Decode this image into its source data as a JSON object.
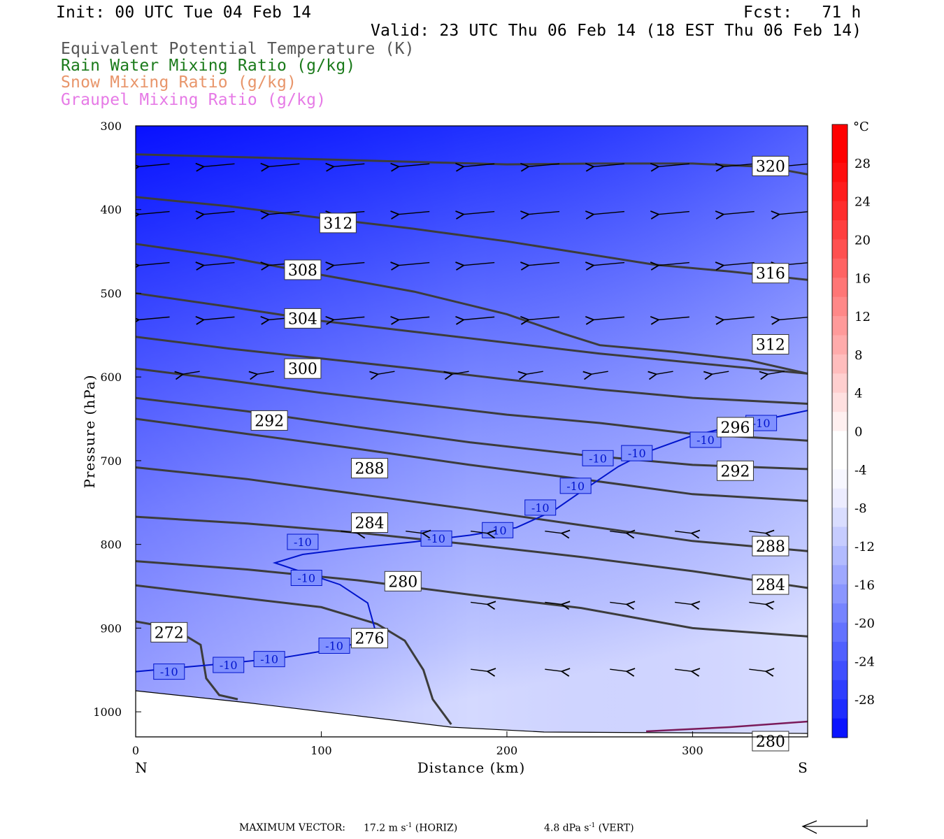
{
  "header": {
    "init": "Init: 00 UTC Tue 04 Feb 14",
    "fcst": "Fcst:   71 h",
    "valid": "Valid: 23 UTC Thu 06 Feb 14 (18 EST Thu 06 Feb 14)"
  },
  "fields": [
    {
      "label": "Equivalent Potential Temperature (K)",
      "color": "#555555"
    },
    {
      "label": "Rain Water Mixing Ratio (g/kg)",
      "color": "#1a7a1a"
    },
    {
      "label": "Snow Mixing Ratio (g/kg)",
      "color": "#e8956a"
    },
    {
      "label": "Graupel Mixing Ratio (g/kg)",
      "color": "#e67ae6"
    }
  ],
  "footer": {
    "max_vector_label": "MAXIMUM VECTOR:",
    "horiz": "17.2 m s-1 (HORIZ)",
    "vert": "4.8 dPa s-1 (VERT)"
  },
  "chart_data": {
    "type": "cross-section",
    "xlabel": "Distance (km)",
    "ylabel": "Pressure (hPa)",
    "xlim": [
      0,
      362
    ],
    "ylim": [
      300,
      1030
    ],
    "x_ticks": [
      0,
      100,
      200,
      300
    ],
    "y_ticks": [
      300,
      400,
      500,
      600,
      700,
      800,
      900,
      1000
    ],
    "left_endpoint": "N",
    "right_endpoint": "S",
    "colorbar": {
      "unit": "°C",
      "tick_labels": [
        28,
        24,
        20,
        16,
        12,
        8,
        4,
        0,
        -4,
        -8,
        -12,
        -16,
        -20,
        -24,
        -28
      ],
      "range": [
        -32,
        32
      ],
      "colors_cold": [
        "#0a14ff",
        "#1e2dff",
        "#2e3eff",
        "#3f4fff",
        "#5060ff",
        "#6372ff",
        "#7684ff",
        "#8a96ff",
        "#9ea8ff",
        "#b2bbff",
        "#c6ccff",
        "#d9ddff",
        "#ececff",
        "#f7f7ff",
        "#ffffff",
        "#ffffff"
      ],
      "colors_warm": [
        "#fff0f0",
        "#ffe0e0",
        "#ffcfcf",
        "#ffbdbd",
        "#ffabab",
        "#ff9a9a",
        "#ff8888",
        "#ff7676",
        "#ff6363",
        "#ff5050",
        "#ff3e3e",
        "#ff2c2c",
        "#ff1c1c",
        "#ff0e0e",
        "#ff0000",
        "#ff0000"
      ]
    },
    "theta_e_contours": [
      {
        "label": "320",
        "points": [
          [
            0,
            334
          ],
          [
            50,
            337
          ],
          [
            100,
            340
          ],
          [
            150,
            343
          ],
          [
            200,
            346
          ],
          [
            250,
            345
          ],
          [
            300,
            345
          ],
          [
            340,
            349
          ],
          [
            362,
            358
          ]
        ],
        "label_at": [
          342,
          348
        ]
      },
      {
        "label": "316",
        "points": [
          [
            0,
            385
          ],
          [
            50,
            396
          ],
          [
            100,
            410
          ],
          [
            150,
            423
          ],
          [
            200,
            438
          ],
          [
            240,
            452
          ],
          [
            280,
            466
          ],
          [
            320,
            474
          ],
          [
            362,
            484
          ]
        ],
        "label_at": [
          342,
          476
        ]
      },
      {
        "label": "312",
        "points": [
          [
            0,
            441
          ],
          [
            50,
            457
          ],
          [
            100,
            478
          ],
          [
            150,
            498
          ],
          [
            200,
            525
          ],
          [
            230,
            548
          ],
          [
            250,
            562
          ],
          [
            290,
            570
          ],
          [
            330,
            580
          ],
          [
            362,
            596
          ]
        ],
        "label_at": [
          109,
          416
        ]
      },
      {
        "label": "312",
        "points": [],
        "label_at": [
          342,
          561
        ]
      },
      {
        "label": "308",
        "points": [
          [
            0,
            500
          ],
          [
            50,
            516
          ],
          [
            100,
            533
          ],
          [
            150,
            546
          ],
          [
            200,
            559
          ],
          [
            250,
            572
          ],
          [
            300,
            583
          ],
          [
            362,
            596
          ]
        ],
        "label_at": [
          90,
          472
        ]
      },
      {
        "label": "304",
        "points": [
          [
            0,
            552
          ],
          [
            50,
            566
          ],
          [
            100,
            578
          ],
          [
            150,
            590
          ],
          [
            200,
            603
          ],
          [
            250,
            615
          ],
          [
            300,
            625
          ],
          [
            362,
            632
          ]
        ],
        "label_at": [
          90,
          530
        ]
      },
      {
        "label": "300",
        "points": [
          [
            0,
            590
          ],
          [
            50,
            604
          ],
          [
            100,
            619
          ],
          [
            150,
            632
          ],
          [
            200,
            645
          ],
          [
            250,
            655
          ],
          [
            300,
            668
          ],
          [
            362,
            676
          ]
        ],
        "label_at": [
          90,
          590
        ]
      },
      {
        "label": "296",
        "points": [
          [
            0,
            625
          ],
          [
            60,
            641
          ],
          [
            120,
            660
          ],
          [
            180,
            678
          ],
          [
            240,
            693
          ],
          [
            300,
            705
          ],
          [
            362,
            710
          ]
        ],
        "label_at": [
          323,
          660
        ]
      },
      {
        "label": "292",
        "points": [
          [
            0,
            650
          ],
          [
            60,
            668
          ],
          [
            120,
            686
          ],
          [
            180,
            705
          ],
          [
            240,
            722
          ],
          [
            300,
            740
          ],
          [
            362,
            748
          ]
        ],
        "label_at": [
          72,
          652
        ]
      },
      {
        "label": "292",
        "points": [],
        "label_at": [
          323,
          712
        ]
      },
      {
        "label": "288",
        "points": [
          [
            0,
            708
          ],
          [
            60,
            722
          ],
          [
            120,
            740
          ],
          [
            180,
            758
          ],
          [
            240,
            777
          ],
          [
            300,
            796
          ],
          [
            362,
            808
          ]
        ],
        "label_at": [
          126,
          709
        ]
      },
      {
        "label": "288",
        "points": [],
        "label_at": [
          342,
          802
        ]
      },
      {
        "label": "284",
        "points": [
          [
            0,
            767
          ],
          [
            60,
            775
          ],
          [
            120,
            786
          ],
          [
            180,
            800
          ],
          [
            240,
            815
          ],
          [
            300,
            832
          ],
          [
            362,
            852
          ]
        ],
        "label_at": [
          126,
          774
        ]
      },
      {
        "label": "284",
        "points": [],
        "label_at": [
          342,
          848
        ]
      },
      {
        "label": "280",
        "points": [
          [
            0,
            820
          ],
          [
            60,
            830
          ],
          [
            120,
            843
          ],
          [
            180,
            860
          ],
          [
            240,
            876
          ],
          [
            300,
            900
          ],
          [
            362,
            910
          ]
        ],
        "label_at": [
          144,
          844
        ]
      },
      {
        "label": "276",
        "points": [
          [
            0,
            849
          ],
          [
            50,
            862
          ],
          [
            100,
            875
          ],
          [
            130,
            895
          ],
          [
            145,
            915
          ],
          [
            155,
            950
          ],
          [
            160,
            985
          ],
          [
            170,
            1015
          ]
        ],
        "label_at": [
          126,
          912
        ]
      },
      {
        "label": "272",
        "points": [
          [
            0,
            892
          ],
          [
            20,
            900
          ],
          [
            35,
            920
          ],
          [
            38,
            960
          ],
          [
            45,
            980
          ],
          [
            55,
            985
          ]
        ],
        "label_at": [
          18,
          905
        ]
      },
      {
        "label": "280",
        "points": [],
        "label_at": [
          342,
          1035
        ]
      }
    ],
    "temperature_contour_minus10": {
      "label": "-10",
      "points": [
        [
          0,
          952
        ],
        [
          50,
          942
        ],
        [
          80,
          935
        ],
        [
          110,
          924
        ],
        [
          130,
          910
        ],
        [
          125,
          870
        ],
        [
          110,
          848
        ],
        [
          75,
          822
        ],
        [
          90,
          812
        ],
        [
          115,
          805
        ],
        [
          150,
          797
        ],
        [
          180,
          789
        ],
        [
          205,
          780
        ],
        [
          225,
          760
        ],
        [
          240,
          737
        ],
        [
          260,
          707
        ],
        [
          275,
          690
        ],
        [
          300,
          670
        ],
        [
          330,
          655
        ],
        [
          362,
          640
        ]
      ],
      "label_positions": [
        [
          18,
          952
        ],
        [
          50,
          944
        ],
        [
          72,
          937
        ],
        [
          107,
          921
        ],
        [
          92,
          840
        ],
        [
          90,
          797
        ],
        [
          162,
          793
        ],
        [
          195,
          783
        ],
        [
          218,
          756
        ],
        [
          237,
          730
        ],
        [
          249,
          697
        ],
        [
          270,
          691
        ],
        [
          307,
          675
        ],
        [
          337,
          655
        ]
      ]
    },
    "wind_vectors": [
      {
        "row_hPa": 347,
        "dir": "westward",
        "x_km": [
          10,
          45,
          80,
          115,
          150,
          185,
          220,
          255,
          290,
          325,
          355
        ]
      },
      {
        "row_hPa": 404,
        "dir": "westward",
        "x_km": [
          10,
          45,
          80,
          115,
          150,
          185,
          220,
          255,
          290,
          325,
          355
        ]
      },
      {
        "row_hPa": 465,
        "dir": "westward",
        "x_km": [
          10,
          45,
          80,
          115,
          150,
          185,
          220,
          255,
          290,
          325,
          355
        ]
      },
      {
        "row_hPa": 530,
        "dir": "westward",
        "x_km": [
          10,
          45,
          80,
          115,
          150,
          185,
          220,
          255,
          290,
          325,
          355
        ]
      },
      {
        "row_hPa": 595,
        "dir": "westward",
        "x_km": [
          30,
          70,
          135,
          175,
          215,
          250,
          285,
          315,
          345
        ]
      },
      {
        "row_hPa": 785,
        "dir": "eastward",
        "x_km": [
          115,
          150,
          185,
          225,
          260,
          295,
          335
        ]
      },
      {
        "row_hPa": 870,
        "dir": "eastward",
        "x_km": [
          185,
          225,
          260,
          295,
          335
        ]
      },
      {
        "row_hPa": 950,
        "dir": "eastward",
        "x_km": [
          185,
          225,
          260,
          295,
          335
        ]
      }
    ]
  }
}
